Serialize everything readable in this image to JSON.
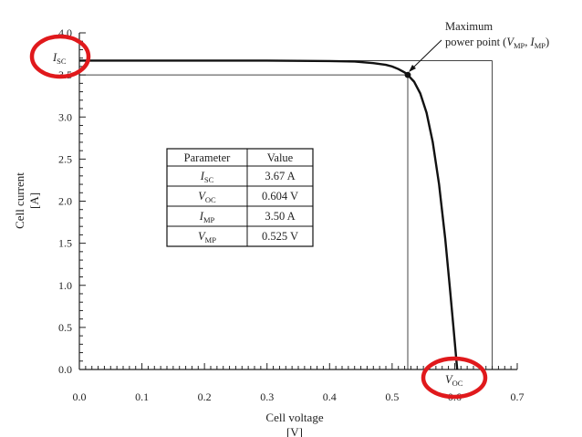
{
  "chart_data": {
    "type": "line",
    "title": "",
    "xlabel": "Cell voltage",
    "xunit": "[V]",
    "ylabel": "Cell current",
    "yunit": "[A]",
    "xlim": [
      0,
      0.7
    ],
    "ylim": [
      0,
      4.0
    ],
    "x_ticks": [
      "0.0",
      "0.1",
      "0.2",
      "0.3",
      "0.4",
      "0.5",
      "0.6",
      "0.7"
    ],
    "y_ticks": [
      "0.0",
      "0.5",
      "1.0",
      "1.5",
      "2.0",
      "2.5",
      "3.0",
      "3.5",
      "4.0"
    ],
    "grid": false,
    "series": [
      {
        "x": [
          0,
          0.1,
          0.2,
          0.3,
          0.4,
          0.44,
          0.47,
          0.49,
          0.5,
          0.51,
          0.52,
          0.525,
          0.535,
          0.545,
          0.555,
          0.565,
          0.575,
          0.585,
          0.592,
          0.598,
          0.604
        ],
        "y": [
          3.67,
          3.67,
          3.67,
          3.67,
          3.665,
          3.66,
          3.64,
          3.62,
          3.6,
          3.57,
          3.53,
          3.5,
          3.42,
          3.28,
          3.05,
          2.7,
          2.2,
          1.55,
          1.0,
          0.5,
          0.0
        ]
      }
    ],
    "reference_lines": {
      "isc": 3.67,
      "imp": 3.5,
      "vmp": 0.525,
      "voc": 0.604
    },
    "annotation": {
      "line1": "Maximum",
      "line2_prefix": "power point (",
      "line2_v": "V",
      "line2_vsub": "MP",
      "line2_sep": ", ",
      "line2_i": "I",
      "line2_isub": "MP",
      "line2_suffix": ")"
    },
    "axis_markers": {
      "isc_main": "I",
      "isc_sub": "SC",
      "voc_main": "V",
      "voc_sub": "OC"
    },
    "table": {
      "headers": [
        "Parameter",
        "Value"
      ],
      "rows": [
        {
          "param": "I",
          "sub": "SC",
          "value": "3.67 A"
        },
        {
          "param": "V",
          "sub": "OC",
          "value": "0.604 V"
        },
        {
          "param": "I",
          "sub": "MP",
          "value": "3.50 A"
        },
        {
          "param": "V",
          "sub": "MP",
          "value": "0.525 V"
        }
      ]
    },
    "highlight_color": "#e0191c",
    "line_color": "#111111"
  }
}
